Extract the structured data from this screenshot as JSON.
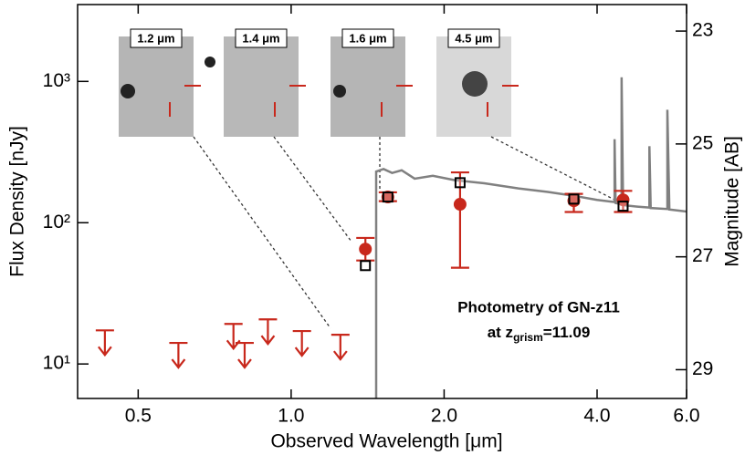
{
  "chart_data": {
    "type": "sed",
    "x_label": "Observed Wavelength [μm]",
    "y_label": "Flux Density [nJy]",
    "y2_label": "Magnitude [AB]",
    "xscale": "log",
    "yscale": "log",
    "xlim": [
      0.38,
      6.0
    ],
    "xticks": [
      0.5,
      {
        "value": 1,
        "label": "1.0"
      },
      {
        "value": 2,
        "label": "2.0"
      },
      {
        "value": 4,
        "label": "4.0"
      },
      {
        "value": 6,
        "label": "6.0"
      }
    ],
    "ylim": [
      5.7,
      3500
    ],
    "yticks": [
      {
        "value": 10,
        "label": "10¹"
      },
      {
        "value": 100,
        "label": "10²"
      },
      {
        "value": 1000,
        "label": "10³"
      }
    ],
    "y2lim": [
      29.51,
      22.53
    ],
    "y2ticks": [
      23,
      25,
      27,
      29
    ],
    "model_spectrum": {
      "color": "#808080",
      "x": [
        1.47,
        1.47,
        1.52,
        1.58,
        1.65,
        1.75,
        1.9,
        2.1,
        2.4,
        2.8,
        3.2,
        3.6,
        4.0,
        4.33,
        4.33,
        4.35,
        4.47,
        4.47,
        4.5,
        4.8,
        5.07,
        5.07,
        5.1,
        5.5,
        5.5,
        5.55,
        6.0
      ],
      "values": [
        5.7,
        230,
        240,
        225,
        235,
        205,
        215,
        200,
        190,
        175,
        165,
        155,
        145,
        140,
        390,
        138,
        135,
        1070,
        133,
        130,
        128,
        348,
        127,
        125,
        630,
        124,
        120
      ]
    },
    "upper_limits": {
      "color": "#c8281c",
      "x": [
        0.43,
        0.6,
        0.77,
        0.81,
        0.9,
        1.05,
        1.25
      ],
      "values": [
        17.3,
        14.1,
        19.2,
        14.1,
        20.7,
        17.1,
        16.1
      ]
    },
    "detections": {
      "color": "#c8281c",
      "x": [
        1.4,
        1.55,
        2.15,
        3.6,
        4.5
      ],
      "values": [
        65,
        152,
        135,
        143,
        145
      ],
      "err_plus": [
        13,
        12,
        92,
        17,
        23
      ],
      "err_minus": [
        11,
        10,
        87,
        24,
        26
      ]
    },
    "model_photometry": {
      "color": "#000000",
      "x": [
        1.4,
        1.55,
        2.15,
        3.6,
        4.5
      ],
      "values": [
        49.7,
        152,
        192,
        147,
        131
      ]
    },
    "insets": [
      "1.2 μm",
      "1.4 μm",
      "1.6 μm",
      "4.5 μm"
    ],
    "annotation": {
      "line1": "Photometry of GN-z11",
      "line2": "at z",
      "line2_sub": "grism",
      "line2_suffix": "=11.09"
    }
  }
}
